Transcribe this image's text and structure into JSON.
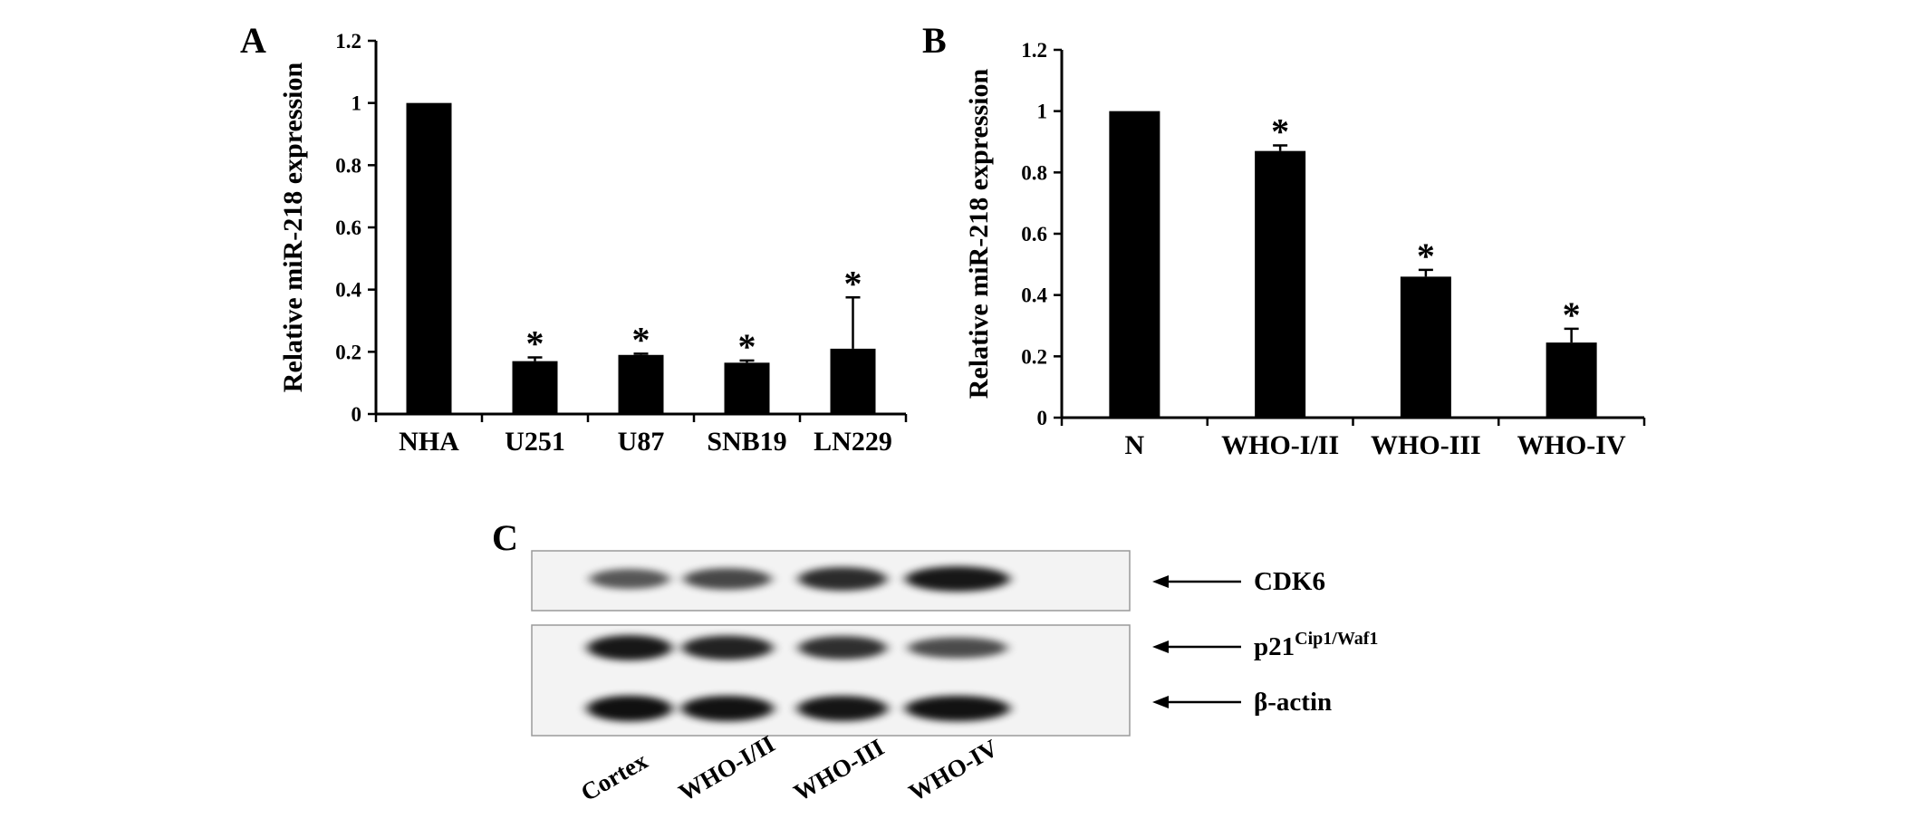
{
  "panels": {
    "A": {
      "letter": "A",
      "chart_data": {
        "type": "bar",
        "categories": [
          "NHA",
          "U251",
          "U87",
          "SNB19",
          "LN229"
        ],
        "values": [
          1.0,
          0.17,
          0.19,
          0.165,
          0.21
        ],
        "errors": [
          0,
          0.012,
          0.004,
          0.007,
          0.165
        ],
        "significance": [
          "",
          "*",
          "*",
          "*",
          "*"
        ],
        "xlabel": "",
        "ylabel": "Relative miR-218 expression",
        "ylim": [
          0,
          1.2
        ],
        "yticks": [
          0,
          0.2,
          0.4,
          0.6,
          0.8,
          1.0,
          1.2
        ],
        "yticklabels": [
          "0",
          "0.2",
          "0.4",
          "0.6",
          "0.8",
          "1",
          "1.2"
        ],
        "bar_color": "#000000",
        "grid": false
      }
    },
    "B": {
      "letter": "B",
      "chart_data": {
        "type": "bar",
        "categories": [
          "N",
          "WHO-I/II",
          "WHO-III",
          "WHO-IV"
        ],
        "values": [
          1.0,
          0.87,
          0.46,
          0.245
        ],
        "errors": [
          0,
          0.018,
          0.022,
          0.045
        ],
        "significance": [
          "",
          "*",
          "*",
          "*"
        ],
        "xlabel": "",
        "ylabel": "Relative miR-218 expression",
        "ylim": [
          0,
          1.2
        ],
        "yticks": [
          0,
          0.2,
          0.4,
          0.6,
          0.8,
          1.0,
          1.2
        ],
        "yticklabels": [
          "0",
          "0.2",
          "0.4",
          "0.6",
          "0.8",
          "1",
          "1.2"
        ],
        "bar_color": "#000000",
        "grid": false
      }
    },
    "C": {
      "letter": "C",
      "lanes": [
        "Cortex",
        "WHO-I/II",
        "WHO-III",
        "WHO-IV"
      ],
      "bands": [
        {
          "name": "CDK6",
          "label": "CDK6",
          "label_sup": "",
          "intensities": [
            0.45,
            0.55,
            0.72,
            0.85
          ]
        },
        {
          "name": "p21",
          "label": "p21",
          "label_sup": "Cip1/Waf1",
          "intensities": [
            0.85,
            0.78,
            0.7,
            0.52
          ]
        },
        {
          "name": "beta-actin",
          "label": "β-actin",
          "label_sup": "",
          "intensities": [
            0.9,
            0.88,
            0.86,
            0.88
          ]
        }
      ]
    }
  }
}
